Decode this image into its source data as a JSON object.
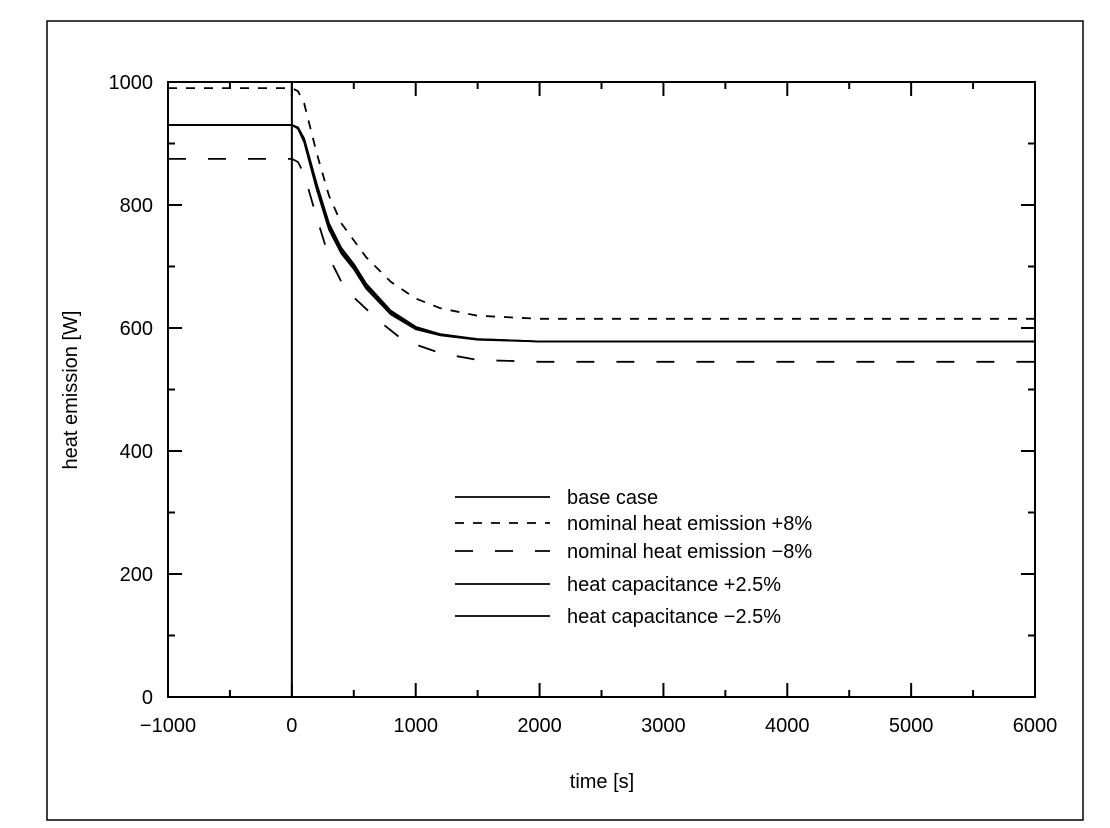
{
  "chart_data": {
    "type": "line",
    "title": "",
    "xlabel": "time [s]",
    "ylabel": "heat emission [W]",
    "xlim": [
      -1000,
      6000
    ],
    "ylim": [
      0,
      1000
    ],
    "xticks": [
      -1000,
      0,
      1000,
      2000,
      3000,
      4000,
      5000,
      6000
    ],
    "xtick_labels": [
      "−1000",
      "0",
      "1000",
      "2000",
      "3000",
      "4000",
      "5000",
      "6000"
    ],
    "yticks": [
      0,
      200,
      400,
      600,
      800,
      1000
    ],
    "ytick_labels": [
      "0",
      "200",
      "400",
      "600",
      "800",
      "1000"
    ],
    "grid": false,
    "legend_position": "center",
    "vertical_marker_x": 0,
    "series": [
      {
        "name": "base case",
        "style": "solid",
        "points": [
          [
            -1000,
            930
          ],
          [
            0,
            930
          ],
          [
            50,
            925
          ],
          [
            100,
            905
          ],
          [
            200,
            830
          ],
          [
            300,
            765
          ],
          [
            400,
            725
          ],
          [
            500,
            700
          ],
          [
            600,
            668
          ],
          [
            800,
            625
          ],
          [
            1000,
            600
          ],
          [
            1200,
            589
          ],
          [
            1500,
            582
          ],
          [
            2000,
            578
          ],
          [
            6000,
            578
          ]
        ]
      },
      {
        "name": "nominal heat emission +8%",
        "style": "short-dash",
        "points": [
          [
            -1000,
            990
          ],
          [
            0,
            990
          ],
          [
            50,
            985
          ],
          [
            100,
            965
          ],
          [
            200,
            885
          ],
          [
            300,
            815
          ],
          [
            400,
            770
          ],
          [
            600,
            715
          ],
          [
            800,
            675
          ],
          [
            1000,
            648
          ],
          [
            1200,
            632
          ],
          [
            1500,
            620
          ],
          [
            2000,
            615
          ],
          [
            6000,
            615
          ]
        ]
      },
      {
        "name": "nominal heat emission −8%",
        "style": "long-dash",
        "points": [
          [
            -1000,
            875
          ],
          [
            0,
            875
          ],
          [
            50,
            870
          ],
          [
            100,
            850
          ],
          [
            200,
            780
          ],
          [
            300,
            715
          ],
          [
            400,
            675
          ],
          [
            500,
            650
          ],
          [
            700,
            612
          ],
          [
            900,
            580
          ],
          [
            1200,
            559
          ],
          [
            1500,
            548
          ],
          [
            2000,
            545
          ],
          [
            6000,
            545
          ]
        ]
      },
      {
        "name": "heat capacitance +2.5%",
        "style": "solid",
        "points": [
          [
            -1000,
            930
          ],
          [
            0,
            930
          ],
          [
            50,
            926
          ],
          [
            100,
            908
          ],
          [
            200,
            835
          ],
          [
            300,
            770
          ],
          [
            400,
            730
          ],
          [
            500,
            704
          ],
          [
            600,
            672
          ],
          [
            800,
            628
          ],
          [
            1000,
            602
          ],
          [
            1200,
            590
          ],
          [
            1500,
            582
          ],
          [
            2000,
            578
          ],
          [
            6000,
            578
          ]
        ]
      },
      {
        "name": "heat capacitance −2.5%",
        "style": "solid",
        "points": [
          [
            -1000,
            930
          ],
          [
            0,
            930
          ],
          [
            50,
            924
          ],
          [
            100,
            902
          ],
          [
            200,
            826
          ],
          [
            300,
            760
          ],
          [
            400,
            721
          ],
          [
            500,
            696
          ],
          [
            600,
            664
          ],
          [
            800,
            622
          ],
          [
            1000,
            598
          ],
          [
            1200,
            588
          ],
          [
            1500,
            581
          ],
          [
            2000,
            578
          ],
          [
            6000,
            578
          ]
        ]
      }
    ]
  }
}
